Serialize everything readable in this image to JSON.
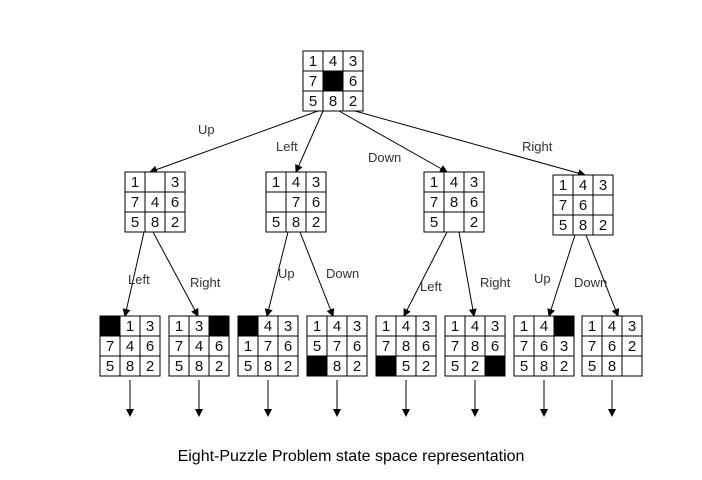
{
  "caption": "Eight-Puzzle Problem state space representation",
  "colors": {
    "line": "#000000",
    "blank": "#000000",
    "text": "#111111",
    "label": "#333333"
  },
  "nodes": [
    {
      "id": "root",
      "cells": [
        "1",
        "4",
        "3",
        "7",
        "B",
        "6",
        "5",
        "8",
        "2"
      ]
    },
    {
      "id": "n-up",
      "cells": [
        "1",
        "",
        "3",
        "7",
        "4",
        "6",
        "5",
        "8",
        "2"
      ]
    },
    {
      "id": "n-left",
      "cells": [
        "1",
        "4",
        "3",
        "",
        "7",
        "6",
        "5",
        "8",
        "2"
      ]
    },
    {
      "id": "n-down",
      "cells": [
        "1",
        "4",
        "3",
        "7",
        "8",
        "6",
        "5",
        "",
        "2"
      ]
    },
    {
      "id": "n-right",
      "cells": [
        "1",
        "4",
        "3",
        "7",
        "6",
        "",
        "5",
        "8",
        "2"
      ]
    },
    {
      "id": "l1",
      "cells": [
        "B",
        "1",
        "3",
        "7",
        "4",
        "6",
        "5",
        "8",
        "2"
      ]
    },
    {
      "id": "l2",
      "cells": [
        "1",
        "3",
        "B",
        "7",
        "4",
        "6",
        "5",
        "8",
        "2"
      ]
    },
    {
      "id": "l3",
      "cells": [
        "B",
        "4",
        "3",
        "1",
        "7",
        "6",
        "5",
        "8",
        "2"
      ]
    },
    {
      "id": "l4",
      "cells": [
        "1",
        "4",
        "3",
        "5",
        "7",
        "6",
        "B",
        "8",
        "2"
      ]
    },
    {
      "id": "l5",
      "cells": [
        "1",
        "4",
        "3",
        "7",
        "8",
        "6",
        "B",
        "5",
        "2"
      ]
    },
    {
      "id": "l6",
      "cells": [
        "1",
        "4",
        "3",
        "7",
        "8",
        "6",
        "5",
        "2",
        "B"
      ]
    },
    {
      "id": "l7",
      "cells": [
        "1",
        "4",
        "B",
        "7",
        "6",
        "3",
        "5",
        "8",
        "2"
      ]
    },
    {
      "id": "l8",
      "cells": [
        "1",
        "4",
        "3",
        "7",
        "6",
        "2",
        "5",
        "8",
        ""
      ]
    }
  ],
  "edges": [
    {
      "from": "root",
      "to": "n-up",
      "label": "Up"
    },
    {
      "from": "root",
      "to": "n-left",
      "label": "Left"
    },
    {
      "from": "root",
      "to": "n-down",
      "label": "Down"
    },
    {
      "from": "root",
      "to": "n-right",
      "label": "Right"
    },
    {
      "from": "n-up",
      "to": "l1",
      "label": "Left"
    },
    {
      "from": "n-up",
      "to": "l2",
      "label": "Right"
    },
    {
      "from": "n-left",
      "to": "l3",
      "label": "Up"
    },
    {
      "from": "n-left",
      "to": "l4",
      "label": "Down"
    },
    {
      "from": "n-down",
      "to": "l5",
      "label": "Left"
    },
    {
      "from": "n-down",
      "to": "l6",
      "label": "Right"
    },
    {
      "from": "n-right",
      "to": "l7",
      "label": "Up"
    },
    {
      "from": "n-right",
      "to": "l8",
      "label": "Down"
    }
  ]
}
